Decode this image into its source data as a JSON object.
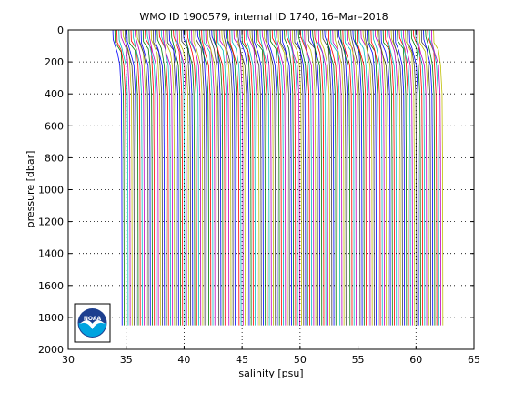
{
  "chart_data": {
    "type": "line",
    "title": "WMO ID 1900579, internal ID 1740, 16–Mar–2018",
    "xlabel": "salinity [psu]",
    "ylabel": "pressure [dbar]",
    "xlim": [
      30,
      65
    ],
    "ylim": [
      0,
      2000
    ],
    "y_reversed": true,
    "grid": "dotted",
    "x_ticks": [
      "30",
      "35",
      "40",
      "45",
      "50",
      "55",
      "60",
      "65"
    ],
    "y_ticks": [
      "0",
      "200",
      "400",
      "600",
      "800",
      "1000",
      "1200",
      "1400",
      "1600",
      "1800",
      "2000"
    ],
    "offset_profiles": {
      "count": 160,
      "first_surface_salinity": 33.9,
      "salinity_step": 0.174,
      "max_pressure": 1850,
      "colors": [
        "#0000ff",
        "#008000",
        "#ff0000",
        "#00bfbf",
        "#bf00bf",
        "#bfbf00",
        "#404040"
      ]
    }
  },
  "logo": {
    "text": "NOAA",
    "colors": {
      "ring": "#1d3f8f",
      "upper": "#1d3f8f",
      "lower": "#00a3e0",
      "bird": "#ffffff"
    }
  }
}
